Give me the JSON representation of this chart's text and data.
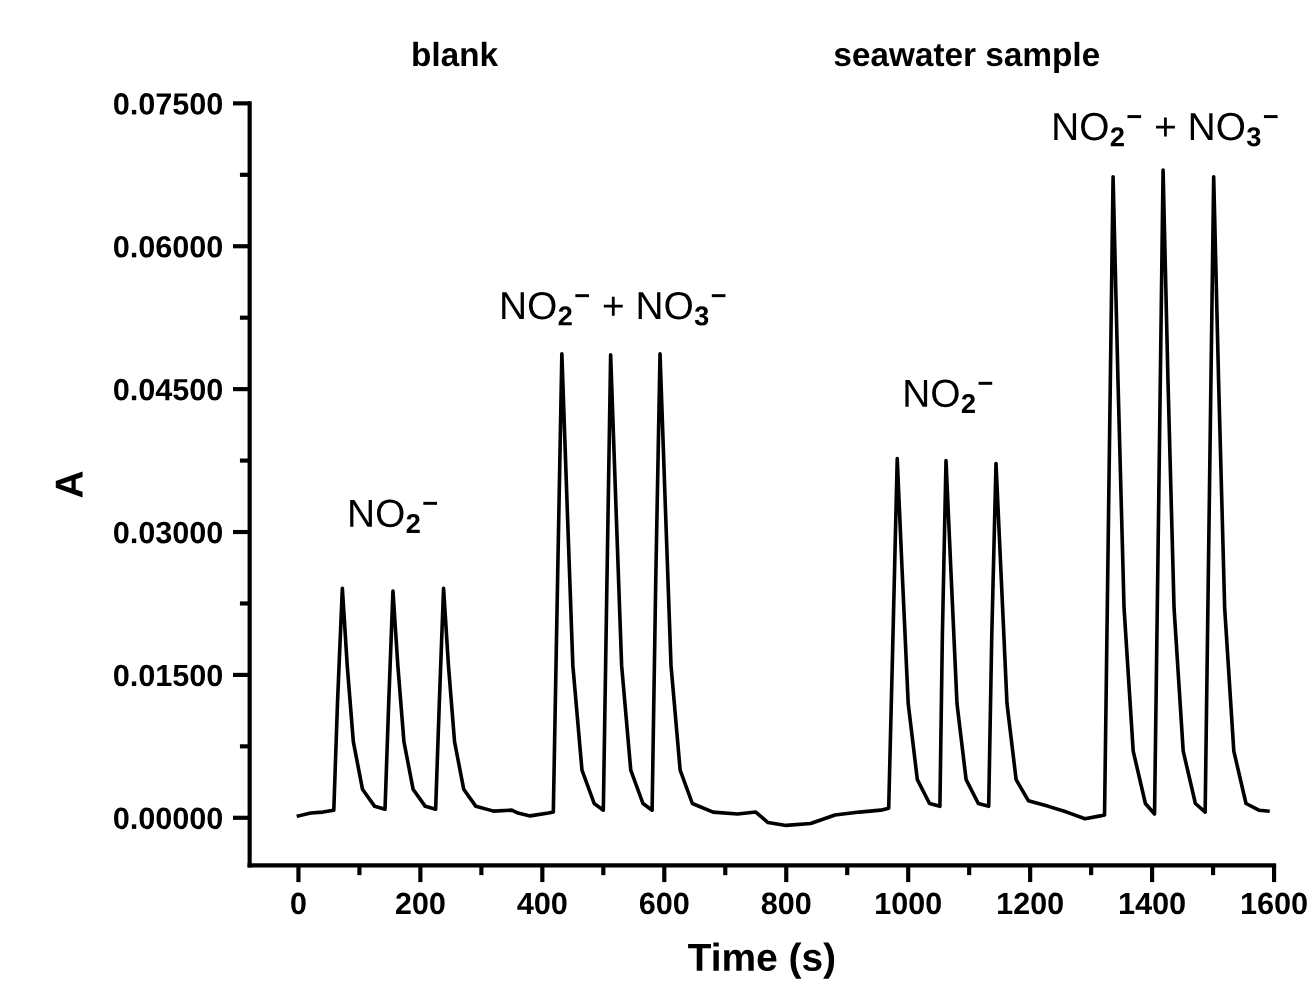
{
  "chart_data": {
    "type": "line",
    "xlabel": "Time (s)",
    "ylabel": "A",
    "x": [
      0,
      20,
      40,
      58,
      64,
      72,
      80,
      90,
      105,
      125,
      142,
      148,
      155,
      163,
      173,
      188,
      208,
      225,
      231,
      238,
      246,
      256,
      271,
      291,
      320,
      350,
      360,
      380,
      410,
      418,
      425,
      432,
      440,
      450,
      465,
      485,
      500,
      506,
      512,
      520,
      530,
      545,
      565,
      580,
      586,
      593,
      601,
      611,
      626,
      646,
      680,
      720,
      750,
      770,
      800,
      840,
      880,
      920,
      955,
      968,
      975,
      982,
      990,
      1000,
      1015,
      1035,
      1052,
      1056,
      1062,
      1070,
      1080,
      1095,
      1115,
      1132,
      1137,
      1144,
      1152,
      1162,
      1177,
      1197,
      1230,
      1260,
      1290,
      1315,
      1322,
      1329,
      1336,
      1344,
      1354,
      1369,
      1389,
      1404,
      1411,
      1418,
      1426,
      1436,
      1451,
      1471,
      1487,
      1494,
      1501,
      1509,
      1519,
      1534,
      1554,
      1575,
      1590
    ],
    "series": [
      {
        "color": "#000000",
        "values": [
          0.0002,
          0.0005,
          0.0006,
          0.0008,
          0.012,
          0.0241,
          0.016,
          0.008,
          0.003,
          0.0012,
          0.0009,
          0.012,
          0.0238,
          0.016,
          0.008,
          0.003,
          0.0012,
          0.0009,
          0.012,
          0.0241,
          0.016,
          0.008,
          0.003,
          0.0012,
          0.0007,
          0.0008,
          0.0005,
          0.0002,
          0.0005,
          0.0006,
          0.025,
          0.0487,
          0.034,
          0.016,
          0.005,
          0.0015,
          0.0008,
          0.025,
          0.0486,
          0.034,
          0.016,
          0.005,
          0.0015,
          0.0008,
          0.025,
          0.0487,
          0.034,
          0.016,
          0.005,
          0.0015,
          0.0006,
          0.0004,
          0.0006,
          -0.0005,
          -0.0008,
          -0.0006,
          0.0003,
          0.0006,
          0.0008,
          0.001,
          0.019,
          0.0377,
          0.026,
          0.012,
          0.004,
          0.0015,
          0.0012,
          0.019,
          0.0375,
          0.026,
          0.012,
          0.004,
          0.0015,
          0.0012,
          0.019,
          0.0372,
          0.026,
          0.012,
          0.004,
          0.0018,
          0.0012,
          0.0006,
          -0.0001,
          0.0002,
          0.0003,
          0.034,
          0.0673,
          0.046,
          0.022,
          0.007,
          0.0015,
          0.0004,
          0.034,
          0.068,
          0.046,
          0.022,
          0.007,
          0.0015,
          0.0006,
          0.034,
          0.0673,
          0.046,
          0.022,
          0.007,
          0.0015,
          0.0008,
          0.0007
        ]
      }
    ],
    "xlim": [
      -80,
      1600
    ],
    "xticks": [
      0,
      200,
      400,
      600,
      800,
      1000,
      1200,
      1400,
      1600
    ],
    "ylim": [
      -0.005,
      0.075
    ],
    "yticks": [
      {
        "value": 0,
        "label": "0.00000"
      },
      {
        "value": 0.015,
        "label": "0.01500"
      },
      {
        "value": 0.03,
        "label": "0.03000"
      },
      {
        "value": 0.045,
        "label": "0.04500"
      },
      {
        "value": 0.06,
        "label": "0.06000"
      },
      {
        "value": 0.075,
        "label": "0.07500"
      }
    ],
    "marker": "none",
    "line_style": "solid",
    "grid": false,
    "legend": false,
    "annotations": [
      "blank",
      "seawater sample",
      "NO$_{2}$$^{−}$",
      "NO$_{2}$$^{−}$ + NO$_{3}$$^{−}$",
      "NO$_{2}$$^{−}$",
      "NO$_{2}$$^{−}$ + NO$_{3}$$^{−}$"
    ]
  }
}
